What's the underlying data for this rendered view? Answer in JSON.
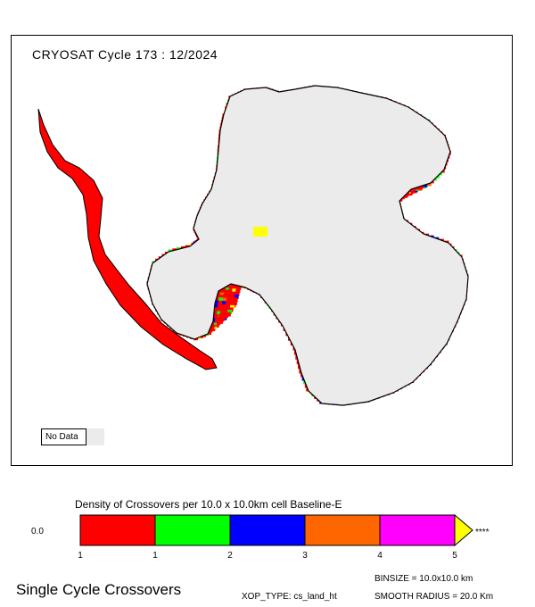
{
  "map": {
    "title": "CRYOSAT Cycle 173 : 12/2024",
    "nodata_label": "No Data",
    "nodata_color": "#ebebeb",
    "land_color": "#ebebeb",
    "coast_color": "#000000"
  },
  "legend": {
    "title": "Density of Crossovers per  10.0 x  10.0km cell Baseline-E",
    "zero_label": "0.0",
    "overflow_label": "****",
    "ticks": [
      "1",
      "1",
      "2",
      "3",
      "4",
      "5"
    ],
    "classes": [
      {
        "color": "#ff0000"
      },
      {
        "color": "#00ff00"
      },
      {
        "color": "#0000ff"
      },
      {
        "color": "#ff6600"
      },
      {
        "color": "#ff00ff"
      },
      {
        "color": "#ffff00"
      }
    ]
  },
  "footer": {
    "title": "Single Cycle Crossovers",
    "binsize": "BINSIZE = 10.0x10.0 km",
    "xop_type": "XOP_TYPE: cs_land_ht",
    "smooth_radius": "SMOOTH RADIUS =  20.0 Km"
  }
}
